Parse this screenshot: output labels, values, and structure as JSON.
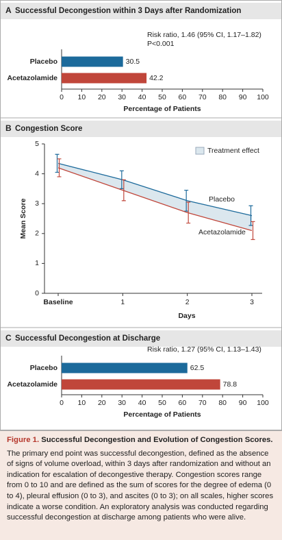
{
  "chart_data": [
    {
      "type": "hbar",
      "panel": "A",
      "title": "Successful Decongestion within 3 Days after Randomization",
      "annotations": [
        "Risk ratio, 1.46 (95% CI, 1.17–1.82)",
        "P<0.001"
      ],
      "categories": [
        "Placebo",
        "Acetazolamide"
      ],
      "values": [
        30.5,
        42.2
      ],
      "colors": [
        "#1c6a9b",
        "#c0463a"
      ],
      "xlim": [
        0,
        100
      ],
      "xticks": [
        0,
        10,
        20,
        30,
        40,
        50,
        60,
        70,
        80,
        90,
        100
      ],
      "xlabel": "Percentage of Patients"
    },
    {
      "type": "line",
      "panel": "B",
      "title": "Congestion Score",
      "categories": [
        "Baseline",
        "1",
        "2",
        "3"
      ],
      "xlabel": "Days",
      "ylabel": "Mean Score",
      "ylim": [
        0,
        5
      ],
      "yticks": [
        0,
        1,
        2,
        3,
        4,
        5
      ],
      "legend": "Treatment effect",
      "legend_color": "#dbe7ee",
      "series": [
        {
          "name": "Placebo",
          "color": "#1c6a9b",
          "values": [
            4.35,
            3.8,
            3.1,
            2.6
          ],
          "errors": [
            0.3,
            0.3,
            0.35,
            0.33
          ]
        },
        {
          "name": "Acetazolamide",
          "color": "#c0463a",
          "values": [
            4.2,
            3.45,
            2.7,
            2.1
          ],
          "errors": [
            0.3,
            0.35,
            0.35,
            0.3
          ]
        }
      ]
    },
    {
      "type": "hbar",
      "panel": "C",
      "title": "Successful Decongestion at Discharge",
      "annotations": [
        "Risk ratio, 1.27 (95% CI, 1.13–1.43)"
      ],
      "categories": [
        "Placebo",
        "Acetazolamide"
      ],
      "values": [
        62.5,
        78.8
      ],
      "colors": [
        "#1c6a9b",
        "#c0463a"
      ],
      "xlim": [
        0,
        100
      ],
      "xticks": [
        0,
        10,
        20,
        30,
        40,
        50,
        60,
        70,
        80,
        90,
        100
      ],
      "xlabel": "Percentage of Patients"
    }
  ],
  "caption": {
    "label": "Figure 1.",
    "title": "Successful Decongestion and Evolution of Congestion Scores.",
    "body": "The primary end point was successful decongestion, defined as the absence of signs of volume overload, within 3 days after randomization and without an indication for escalation of decongestive therapy. Congestion scores range from 0 to 10 and are defined as the sum of scores for the degree of edema (0 to 4), pleural effusion (0 to 3), and ascites (0 to 3); on all scales, higher scores indicate a worse condition. An exploratory analysis was conducted regarding successful decongestion at discharge among patients who were alive."
  }
}
